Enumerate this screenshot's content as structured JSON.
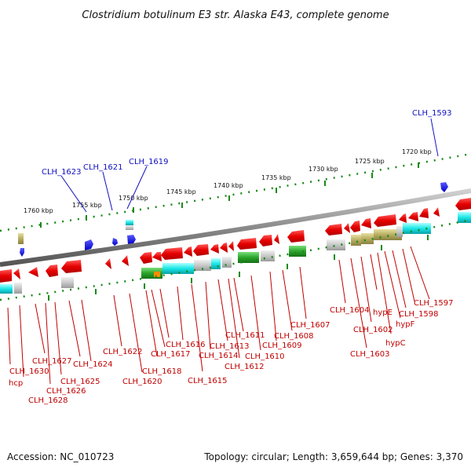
{
  "title": "Clostridium botulinum E3 str. Alaska E43, complete genome",
  "footer": {
    "accession": "Accession: NC_010723",
    "summary": "Topology: circular; Length: 3,659,644 bp; Genes: 3,370"
  },
  "ruler_labels": [
    "1760 kbp",
    "1755 kbp",
    "1750 kbp",
    "1745 kbp",
    "1740 kbp",
    "1735 kbp",
    "1730 kbp",
    "1725 kbp",
    "1720 kbp"
  ],
  "blue_labels": [
    "CLH_1623",
    "CLH_1621",
    "CLH_1619",
    "CLH_1593"
  ],
  "red_labels": [
    "CLH_1630",
    "hcp",
    "CLH_1627",
    "CLH_1628",
    "CLH_1626",
    "CLH_1625",
    "CLH_1624",
    "CLH_1622",
    "CLH_1620",
    "CLH_1618",
    "CLH_1617",
    "CLH_1616",
    "CLH_1615",
    "CLH_1614",
    "CLH_1613",
    "CLH_1612",
    "CLH_1611",
    "CLH_1610",
    "CLH_1609",
    "CLH_1608",
    "CLH_1607",
    "CLH_1604",
    "CLH_1603",
    "CLH_1602",
    "hypE",
    "hypC",
    "hypF",
    "CLH_1598",
    "CLH_1597"
  ],
  "colors": {
    "forward_gene": "#e60000",
    "reverse_gene_blue": "#1a1aff",
    "backbone": "#8a8a8a",
    "ruler": "#1a8a1a",
    "label_red": "#c00000",
    "label_blue": "#1010c0"
  }
}
